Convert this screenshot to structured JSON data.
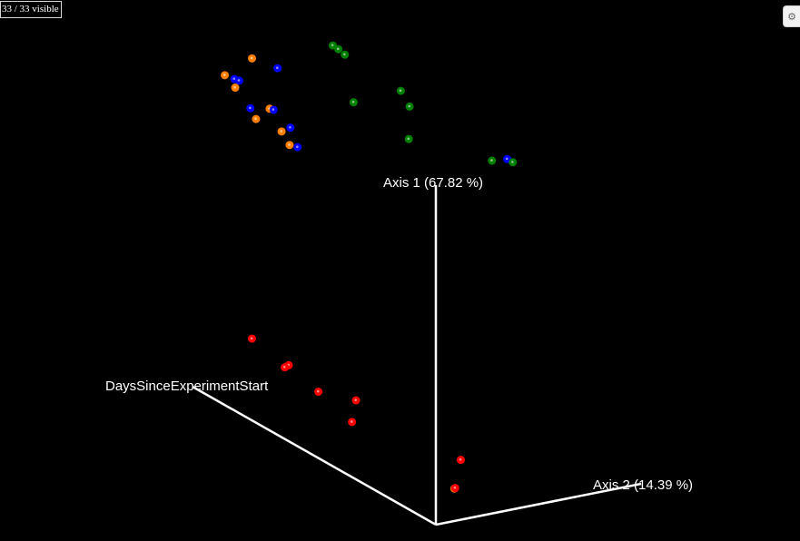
{
  "viewer": {
    "visible_count": "33 / 33 visible",
    "settings_icon": "gear-icon"
  },
  "chart_data": {
    "type": "scatter",
    "projection": "3d",
    "grid": false,
    "legend": false,
    "background": "#000000",
    "axis_color": "#ffffff",
    "axes": [
      {
        "id": "axis1",
        "label": "Axis 1 (67.82 %)"
      },
      {
        "id": "axis2",
        "label": "Axis 2 (14.39 %)"
      },
      {
        "id": "axis3",
        "label": "DaysSinceExperimentStart"
      }
    ],
    "colors": {
      "orange": "#ff8000",
      "blue": "#0000ff",
      "green": "#008000",
      "red": "#ff0000"
    },
    "points": [
      {
        "x": 0.315,
        "y": 0.108,
        "z": 0.5,
        "color": "orange"
      },
      {
        "x": 0.347,
        "y": 0.126,
        "z": 0.5,
        "color": "blue"
      },
      {
        "x": 0.281,
        "y": 0.139,
        "z": 0.5,
        "color": "orange"
      },
      {
        "x": 0.293,
        "y": 0.146,
        "z": 0.5,
        "color": "blue"
      },
      {
        "x": 0.299,
        "y": 0.149,
        "z": 0.5,
        "color": "blue"
      },
      {
        "x": 0.294,
        "y": 0.162,
        "z": 0.5,
        "color": "orange"
      },
      {
        "x": 0.313,
        "y": 0.2,
        "z": 0.5,
        "color": "blue"
      },
      {
        "x": 0.337,
        "y": 0.201,
        "z": 0.5,
        "color": "orange"
      },
      {
        "x": 0.342,
        "y": 0.203,
        "z": 0.5,
        "color": "blue"
      },
      {
        "x": 0.32,
        "y": 0.22,
        "z": 0.5,
        "color": "orange"
      },
      {
        "x": 0.363,
        "y": 0.236,
        "z": 0.5,
        "color": "blue"
      },
      {
        "x": 0.352,
        "y": 0.243,
        "z": 0.5,
        "color": "orange"
      },
      {
        "x": 0.362,
        "y": 0.268,
        "z": 0.5,
        "color": "orange"
      },
      {
        "x": 0.372,
        "y": 0.272,
        "z": 0.5,
        "color": "blue"
      },
      {
        "x": 0.634,
        "y": 0.294,
        "z": 0.5,
        "color": "blue"
      },
      {
        "x": 0.568,
        "y": 0.903,
        "z": 0.5,
        "color": "orange"
      },
      {
        "x": 0.416,
        "y": 0.084,
        "z": 0.5,
        "color": "green"
      },
      {
        "x": 0.423,
        "y": 0.091,
        "z": 0.5,
        "color": "green"
      },
      {
        "x": 0.431,
        "y": 0.101,
        "z": 0.5,
        "color": "green"
      },
      {
        "x": 0.501,
        "y": 0.168,
        "z": 0.5,
        "color": "green"
      },
      {
        "x": 0.442,
        "y": 0.189,
        "z": 0.5,
        "color": "green"
      },
      {
        "x": 0.512,
        "y": 0.197,
        "z": 0.5,
        "color": "green"
      },
      {
        "x": 0.511,
        "y": 0.257,
        "z": 0.5,
        "color": "green"
      },
      {
        "x": 0.615,
        "y": 0.297,
        "z": 0.5,
        "color": "green"
      },
      {
        "x": 0.641,
        "y": 0.3,
        "z": 0.5,
        "color": "green"
      },
      {
        "x": 0.315,
        "y": 0.626,
        "z": 0.5,
        "color": "red"
      },
      {
        "x": 0.361,
        "y": 0.675,
        "z": 0.5,
        "color": "red"
      },
      {
        "x": 0.356,
        "y": 0.679,
        "z": 0.5,
        "color": "red"
      },
      {
        "x": 0.398,
        "y": 0.724,
        "z": 0.5,
        "color": "red"
      },
      {
        "x": 0.445,
        "y": 0.74,
        "z": 0.5,
        "color": "red"
      },
      {
        "x": 0.44,
        "y": 0.78,
        "z": 0.5,
        "color": "red"
      },
      {
        "x": 0.576,
        "y": 0.85,
        "z": 0.5,
        "color": "red"
      },
      {
        "x": 0.569,
        "y": 0.902,
        "z": 0.5,
        "color": "red"
      }
    ]
  }
}
